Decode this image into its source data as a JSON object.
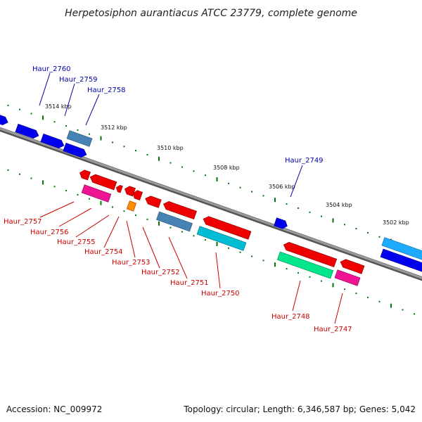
{
  "title": "Herpetosiphon aurantiacus ATCC 23779, complete genome",
  "footer": {
    "accession": "Accession: NC_009972",
    "info": "Topology: circular; Length: 6,346,587 bp; Genes: 5,042"
  },
  "scale_labels": [
    "3514 kbp",
    "3512 kbp",
    "3510 kbp",
    "3508 kbp",
    "3506 kbp",
    "3504 kbp",
    "3502 kbp"
  ],
  "forward_gene_labels": [
    "Haur_2760",
    "Haur_2759",
    "Haur_2758",
    "Haur_2749"
  ],
  "reverse_gene_labels": [
    "Haur_2757",
    "Haur_2756",
    "Haur_2755",
    "Haur_2754",
    "Haur_2753",
    "Haur_2752",
    "Haur_2751",
    "Haur_2750",
    "Haur_2748",
    "Haur_2747"
  ],
  "colors": {
    "forward_label": "#0000aa",
    "reverse_label": "#cc0000",
    "blue": "#0000ee",
    "steel": "#4682b4",
    "red": "#ee0000",
    "pink": "#ee1493",
    "orange": "#ff8c00",
    "cyan": "#00bcd4",
    "light_blue": "#1eaaff",
    "green_teal": "#00e68a",
    "backbone": "#808080",
    "tick": "#007700"
  }
}
